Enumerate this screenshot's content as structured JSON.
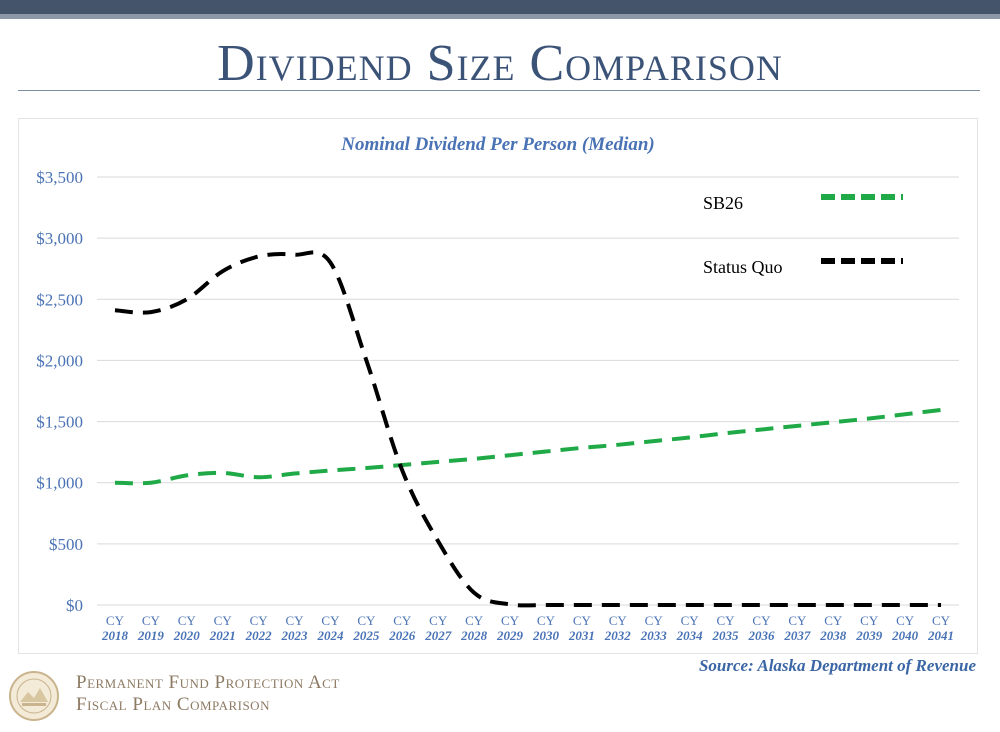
{
  "slide": {
    "title": "Dividend Size Comparison",
    "source": "Source: Alaska Department of Revenue",
    "footer_line1": "Permanent Fund Protection Act",
    "footer_line2": "Fiscal Plan Comparison"
  },
  "colors": {
    "title": "#3c5378",
    "axis_text": "#4a73b5",
    "sb26": "#1faa47",
    "status_quo": "#000000",
    "gridline": "#d9d9d9",
    "footer": "#8d7a63"
  },
  "chart_data": {
    "type": "line",
    "title": "Nominal Dividend Per Person (Median)",
    "categories": [
      "CY\n2018",
      "CY\n2019",
      "CY\n2020",
      "CY\n2021",
      "CY\n2022",
      "CY\n2023",
      "CY\n2024",
      "CY\n2025",
      "CY\n2026",
      "CY\n2027",
      "CY\n2028",
      "CY\n2029",
      "CY\n2030",
      "CY\n2031",
      "CY\n2032",
      "CY\n2033",
      "CY\n2034",
      "CY\n2035",
      "CY\n2036",
      "CY\n2037",
      "CY\n2038",
      "CY\n2039",
      "CY\n2040",
      "CY\n2041"
    ],
    "yticks": [
      "$0",
      "$500",
      "$1,000",
      "$1,500",
      "$2,000",
      "$2,500",
      "$3,000",
      "$3,500"
    ],
    "ylim": [
      0,
      3500
    ],
    "series": [
      {
        "name": "SB26",
        "line_style": "dashed",
        "values": [
          1000,
          1000,
          1060,
          1080,
          1045,
          1075,
          1100,
          1120,
          1145,
          1170,
          1195,
          1225,
          1255,
          1285,
          1310,
          1340,
          1370,
          1405,
          1435,
          1465,
          1495,
          1525,
          1560,
          1595
        ]
      },
      {
        "name": "Status Quo",
        "line_style": "dashed",
        "values": [
          2410,
          2395,
          2500,
          2730,
          2850,
          2865,
          2800,
          2000,
          1100,
          520,
          100,
          5,
          0,
          0,
          0,
          0,
          0,
          0,
          0,
          0,
          0,
          0,
          0,
          0
        ]
      }
    ],
    "grid": true,
    "legend_position": "top-right"
  }
}
